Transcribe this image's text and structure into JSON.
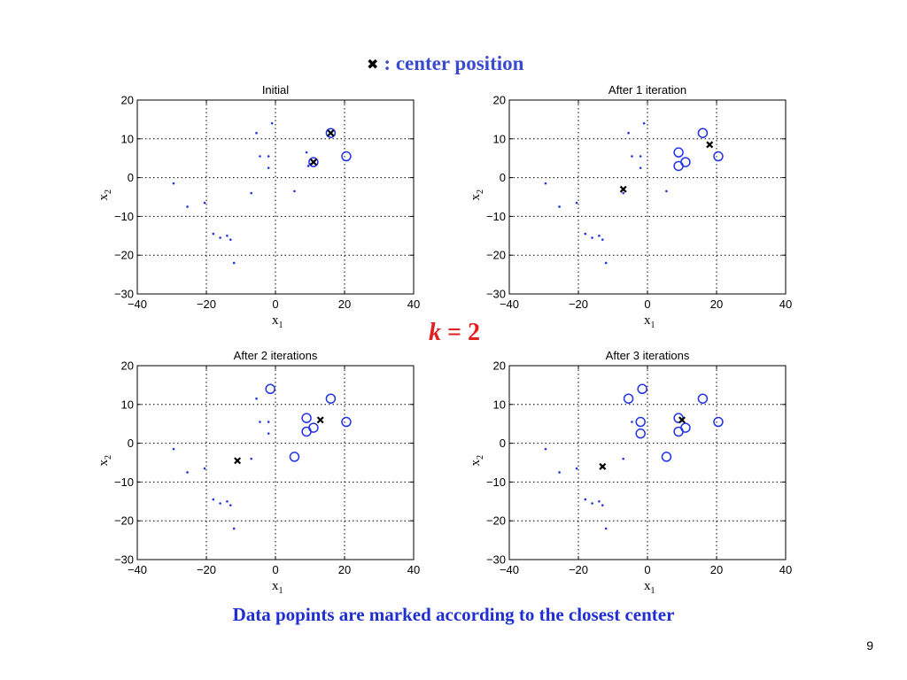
{
  "header": {
    "legend_marker": "✖",
    "legend_text": ": center  position"
  },
  "k_label": {
    "var": "k",
    "rest": " = 2"
  },
  "footer": {
    "caption": "Data popints are marked according to the closest center"
  },
  "page": {
    "number": "9"
  },
  "colors": {
    "points": "#2232e6",
    "centers": "#000000",
    "legend": "#3b4bd0",
    "k": "#e02020"
  },
  "chart_data": [
    {
      "type": "scatter",
      "title": "Initial",
      "xlabel": "x1",
      "ylabel": "x2",
      "xlim": [
        -40,
        40
      ],
      "ylim": [
        -30,
        20
      ],
      "xticks": [
        -40,
        -20,
        0,
        20,
        40
      ],
      "yticks": [
        -30,
        -20,
        -10,
        0,
        10,
        20
      ],
      "grid": true,
      "cluster_points": [
        [
          16,
          11.5
        ],
        [
          11,
          4
        ],
        [
          20.5,
          5.5
        ]
      ],
      "other_points": [
        [
          -29.5,
          -1.5
        ],
        [
          -25.5,
          -7.5
        ],
        [
          -20.5,
          -6.5
        ],
        [
          -18,
          -14.5
        ],
        [
          -16,
          -15.5
        ],
        [
          -14,
          -15
        ],
        [
          -13,
          -16
        ],
        [
          -12,
          -22
        ],
        [
          -7,
          -4
        ],
        [
          -5.5,
          11.5
        ],
        [
          -4.5,
          5.5
        ],
        [
          -2,
          5.5
        ],
        [
          -2,
          2.5
        ],
        [
          -1,
          14
        ],
        [
          5.5,
          -3.5
        ],
        [
          9,
          6.5
        ],
        [
          9.5,
          3
        ],
        [
          10,
          3.5
        ]
      ],
      "centers": [
        [
          16,
          11.5
        ],
        [
          11,
          4
        ]
      ]
    },
    {
      "type": "scatter",
      "title": "After 1 iteration",
      "xlabel": "x1",
      "ylabel": "x2",
      "xlim": [
        -40,
        40
      ],
      "ylim": [
        -30,
        20
      ],
      "xticks": [
        -40,
        -20,
        0,
        20,
        40
      ],
      "yticks": [
        -30,
        -20,
        -10,
        0,
        10,
        20
      ],
      "grid": true,
      "cluster_points": [
        [
          16,
          11.5
        ],
        [
          9,
          6.5
        ],
        [
          9,
          3
        ],
        [
          11,
          4
        ],
        [
          20.5,
          5.5
        ]
      ],
      "other_points": [
        [
          -29.5,
          -1.5
        ],
        [
          -25.5,
          -7.5
        ],
        [
          -20.5,
          -6.5
        ],
        [
          -18,
          -14.5
        ],
        [
          -16,
          -15.5
        ],
        [
          -14,
          -15
        ],
        [
          -13,
          -16
        ],
        [
          -12,
          -22
        ],
        [
          -7,
          -4
        ],
        [
          -5.5,
          11.5
        ],
        [
          -4.5,
          5.5
        ],
        [
          -2,
          5.5
        ],
        [
          -2,
          2.5
        ],
        [
          -1,
          14
        ],
        [
          5.5,
          -3.5
        ]
      ],
      "centers": [
        [
          18,
          8.5
        ],
        [
          -7,
          -3
        ]
      ]
    },
    {
      "type": "scatter",
      "title": "After 2 iterations",
      "xlabel": "x1",
      "ylabel": "x2",
      "xlim": [
        -40,
        40
      ],
      "ylim": [
        -30,
        20
      ],
      "xticks": [
        -40,
        -20,
        0,
        20,
        40
      ],
      "yticks": [
        -30,
        -20,
        -10,
        0,
        10,
        20
      ],
      "grid": true,
      "cluster_points": [
        [
          -1.5,
          14
        ],
        [
          16,
          11.5
        ],
        [
          9,
          6.5
        ],
        [
          9,
          3
        ],
        [
          11,
          4
        ],
        [
          20.5,
          5.5
        ],
        [
          5.5,
          -3.5
        ]
      ],
      "other_points": [
        [
          -29.5,
          -1.5
        ],
        [
          -25.5,
          -7.5
        ],
        [
          -20.5,
          -6.5
        ],
        [
          -18,
          -14.5
        ],
        [
          -16,
          -15.5
        ],
        [
          -14,
          -15
        ],
        [
          -13,
          -16
        ],
        [
          -12,
          -22
        ],
        [
          -7,
          -4
        ],
        [
          -5.5,
          11.5
        ],
        [
          -4.5,
          5.5
        ],
        [
          -2,
          5.5
        ],
        [
          -2,
          2.5
        ]
      ],
      "centers": [
        [
          13,
          6
        ],
        [
          -11,
          -4.5
        ]
      ]
    },
    {
      "type": "scatter",
      "title": "After 3 iterations",
      "xlabel": "x1",
      "ylabel": "x2",
      "xlim": [
        -40,
        40
      ],
      "ylim": [
        -30,
        20
      ],
      "xticks": [
        -40,
        -20,
        0,
        20,
        40
      ],
      "yticks": [
        -30,
        -20,
        -10,
        0,
        10,
        20
      ],
      "grid": true,
      "cluster_points": [
        [
          -5.5,
          11.5
        ],
        [
          -1.5,
          14
        ],
        [
          16,
          11.5
        ],
        [
          -2,
          5.5
        ],
        [
          -2,
          2.5
        ],
        [
          9,
          6.5
        ],
        [
          9,
          3
        ],
        [
          11,
          4
        ],
        [
          20.5,
          5.5
        ],
        [
          5.5,
          -3.5
        ]
      ],
      "other_points": [
        [
          -29.5,
          -1.5
        ],
        [
          -25.5,
          -7.5
        ],
        [
          -20.5,
          -6.5
        ],
        [
          -18,
          -14.5
        ],
        [
          -16,
          -15.5
        ],
        [
          -14,
          -15
        ],
        [
          -13,
          -16
        ],
        [
          -12,
          -22
        ],
        [
          -7,
          -4
        ],
        [
          -4.5,
          5.5
        ]
      ],
      "centers": [
        [
          10,
          6
        ],
        [
          -13,
          -6
        ]
      ]
    }
  ]
}
